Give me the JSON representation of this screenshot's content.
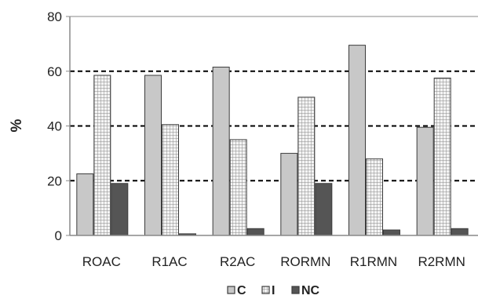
{
  "chart_data": {
    "type": "bar",
    "title": "",
    "xlabel": "",
    "ylabel": "%",
    "ylim": [
      0,
      80
    ],
    "yticks": [
      "0",
      "20",
      "40",
      "60",
      "80"
    ],
    "grid": "dashed horizontal at 20, 40, 60",
    "legend_position": "bottom",
    "categories": [
      "ROAC",
      "R1AC",
      "R2AC",
      "RORMN",
      "R1RMN",
      "R2RMN"
    ],
    "series": [
      {
        "name": "C",
        "values": [
          22.5,
          58.5,
          61.5,
          30,
          69.5,
          39.5
        ],
        "color": "#c8c8c8",
        "pattern": "solid"
      },
      {
        "name": "I",
        "values": [
          58.5,
          40.5,
          35,
          50.5,
          28,
          57.5
        ],
        "color": "#e8e8e8",
        "pattern": "grid"
      },
      {
        "name": "NC",
        "values": [
          19,
          0.6,
          2.5,
          19,
          2,
          2.5
        ],
        "color": "#555555",
        "pattern": "solid"
      }
    ]
  }
}
